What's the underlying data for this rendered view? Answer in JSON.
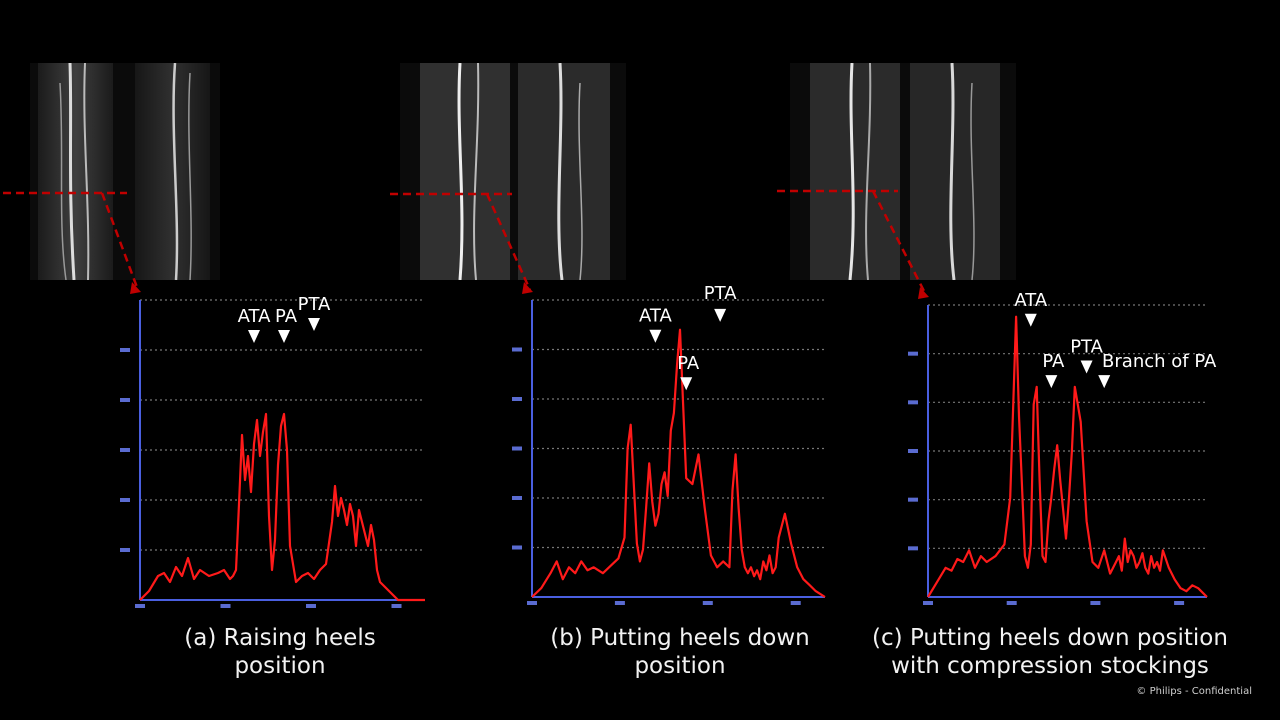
{
  "panels": [
    {
      "caption_line1": "(a) Raising heels",
      "caption_line2": "position",
      "chart_data": {
        "type": "line",
        "series": [
          {
            "color": "#ff1a1a",
            "x": [
              0,
              3,
              6,
              8,
              10,
              12,
              14,
              16,
              18,
              20,
              23,
              26,
              28,
              30,
              31,
              32,
              33,
              34,
              35,
              36,
              37,
              38,
              39,
              40,
              41,
              42,
              43,
              44,
              45,
              46,
              47,
              48,
              49,
              50,
              52,
              54,
              56,
              58,
              60,
              62,
              64,
              65,
              66,
              67,
              68,
              69,
              70,
              71,
              72,
              73,
              74,
              75,
              76,
              77,
              78,
              79,
              80,
              82,
              84,
              86,
              88,
              90,
              92,
              95
            ],
            "y": [
              0,
              3,
              8,
              9,
              6,
              11,
              8,
              14,
              7,
              10,
              8,
              9,
              10,
              7,
              8,
              10,
              32,
              55,
              40,
              48,
              36,
              52,
              60,
              48,
              56,
              62,
              28,
              10,
              20,
              45,
              58,
              62,
              50,
              18,
              6,
              8,
              9,
              7,
              10,
              12,
              26,
              38,
              28,
              34,
              30,
              25,
              32,
              28,
              18,
              30,
              26,
              22,
              18,
              25,
              20,
              10,
              6,
              4,
              2,
              0,
              0,
              0,
              0,
              0
            ]
          }
        ],
        "annotations": [
          {
            "label": "ATA"
          },
          {
            "label": "PA"
          },
          {
            "label": "PTA"
          }
        ]
      }
    },
    {
      "caption_line1": "(b) Putting heels down",
      "caption_line2": "position",
      "chart_data": {
        "type": "line",
        "series": [
          {
            "color": "#ff1a1a",
            "x": [
              0,
              3,
              6,
              8,
              10,
              12,
              14,
              16,
              18,
              20,
              23,
              26,
              28,
              30,
              31,
              32,
              33,
              34,
              35,
              36,
              37,
              38,
              39,
              40,
              41,
              42,
              43,
              44,
              45,
              46,
              47,
              48,
              49,
              50,
              52,
              54,
              56,
              58,
              60,
              62,
              64,
              65,
              66,
              67,
              68,
              69,
              70,
              71,
              72,
              73,
              74,
              75,
              76,
              77,
              78,
              79,
              80,
              82,
              84,
              86,
              88,
              90,
              92,
              95
            ],
            "y": [
              0,
              3,
              8,
              12,
              6,
              10,
              8,
              12,
              9,
              10,
              8,
              11,
              13,
              20,
              50,
              58,
              38,
              18,
              12,
              16,
              30,
              45,
              32,
              24,
              28,
              38,
              42,
              34,
              56,
              62,
              78,
              90,
              65,
              40,
              38,
              48,
              30,
              14,
              10,
              12,
              10,
              36,
              48,
              30,
              16,
              10,
              8,
              10,
              7,
              9,
              6,
              12,
              9,
              14,
              8,
              10,
              20,
              28,
              18,
              10,
              6,
              4,
              2,
              0
            ]
          }
        ],
        "annotations": [
          {
            "label": "ATA"
          },
          {
            "label": "PA"
          },
          {
            "label": "PTA"
          }
        ]
      }
    },
    {
      "caption_line1": "(c) Putting heels down position",
      "caption_line2": "with compression stockings",
      "chart_data": {
        "type": "line",
        "series": [
          {
            "color": "#ff1a1a",
            "x": [
              0,
              3,
              6,
              8,
              10,
              12,
              14,
              16,
              18,
              20,
              23,
              26,
              28,
              30,
              31,
              32,
              33,
              34,
              35,
              36,
              37,
              38,
              39,
              40,
              41,
              42,
              43,
              44,
              45,
              46,
              47,
              48,
              49,
              50,
              52,
              54,
              56,
              58,
              60,
              62,
              64,
              65,
              66,
              67,
              68,
              69,
              70,
              71,
              72,
              73,
              74,
              75,
              76,
              77,
              78,
              79,
              80,
              82,
              84,
              86,
              88,
              90,
              92,
              95
            ],
            "y": [
              0,
              5,
              10,
              9,
              13,
              12,
              16,
              10,
              14,
              12,
              14,
              18,
              34,
              96,
              62,
              38,
              14,
              10,
              18,
              66,
              72,
              40,
              14,
              12,
              26,
              34,
              44,
              52,
              40,
              30,
              20,
              34,
              50,
              72,
              60,
              26,
              12,
              10,
              16,
              8,
              12,
              14,
              9,
              20,
              12,
              16,
              14,
              10,
              12,
              15,
              10,
              8,
              14,
              10,
              12,
              9,
              16,
              10,
              6,
              3,
              2,
              4,
              3,
              0
            ]
          }
        ],
        "annotations": [
          {
            "label": "ATA"
          },
          {
            "label": "PA"
          },
          {
            "label": "PTA"
          },
          {
            "label": "Branch of PA"
          }
        ]
      }
    }
  ],
  "footer_text": "© Philips - Confidential"
}
